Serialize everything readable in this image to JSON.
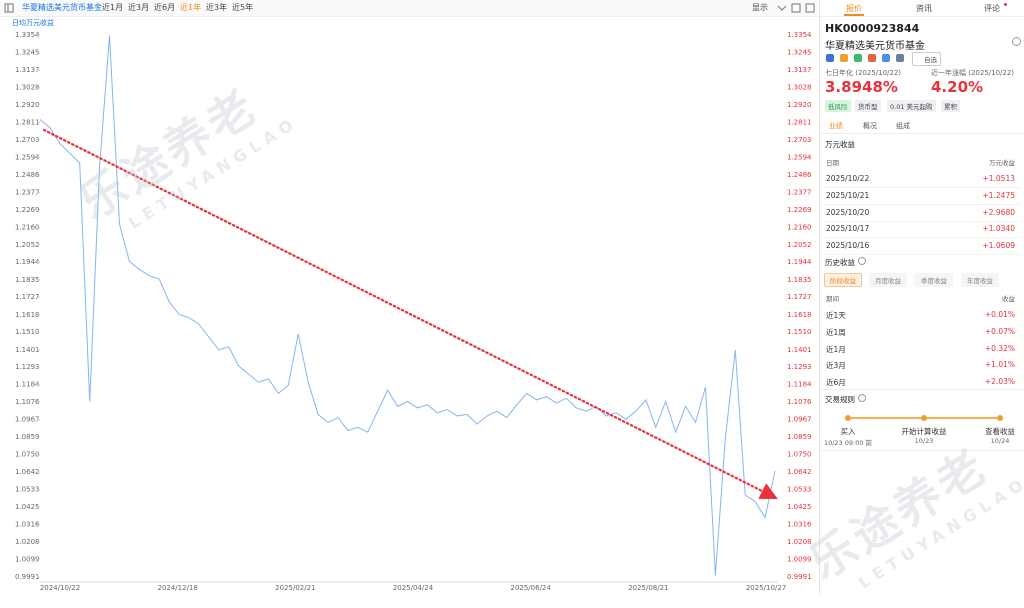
{
  "toolbar": {
    "fund": "华夏精选美元货币基金",
    "ranges": [
      "近1月",
      "近3月",
      "近6月",
      "近1年",
      "近3年",
      "近5年"
    ],
    "display": "显示"
  },
  "watermark": {
    "text": "乐途养老",
    "subtext": "LETUYANGLAO"
  },
  "chart_data": {
    "type": "line",
    "series": [
      {
        "name": "日均万元收益",
        "color": "#86b4ef",
        "values": [
          1.283,
          1.278,
          1.268,
          1.262,
          1.256,
          1.108,
          1.254,
          1.335,
          1.218,
          1.195,
          1.19,
          1.186,
          1.184,
          1.17,
          1.162,
          1.16,
          1.156,
          1.148,
          1.14,
          1.142,
          1.13,
          1.125,
          1.12,
          1.122,
          1.113,
          1.118,
          1.15,
          1.12,
          1.1,
          1.095,
          1.098,
          1.09,
          1.092,
          1.089,
          1.102,
          1.115,
          1.105,
          1.108,
          1.104,
          1.106,
          1.101,
          1.103,
          1.099,
          1.1,
          1.094,
          1.099,
          1.102,
          1.098,
          1.106,
          1.113,
          1.109,
          1.111,
          1.107,
          1.11,
          1.104,
          1.102,
          1.105,
          1.099,
          1.101,
          1.097,
          1.102,
          1.109,
          1.092,
          1.108,
          1.089,
          1.105,
          1.095,
          1.117,
          1.0,
          1.085,
          1.14,
          1.05,
          1.046,
          1.036,
          1.065
        ]
      }
    ],
    "xticks": [
      "2024/10/22",
      "2024/12/18",
      "2025/02/21",
      "2025/04/24",
      "2025/06/24",
      "2025/08/21",
      "2025/10/27"
    ],
    "ylim": [
      0.9991,
      1.3354
    ],
    "yticks": [
      1.3354,
      1.3245,
      1.3137,
      1.3028,
      {
        "value": 1.292,
        "label": "1.2920"
      },
      1.2811,
      1.2703,
      1.2594,
      1.2486,
      1.2377,
      1.2269,
      {
        "value": 1.216,
        "label": "1.2160"
      },
      1.2052,
      1.1944,
      1.1835,
      1.1727,
      1.1618,
      {
        "value": 1.151,
        "label": "1.1510"
      },
      1.1401,
      1.1293,
      1.1184,
      1.1076,
      1.0967,
      1.0859,
      {
        "value": 1.075,
        "label": "1.0750"
      },
      1.0642,
      1.0533,
      1.0425,
      1.0316,
      1.0208,
      1.0099,
      0.9991
    ],
    "grid": false
  },
  "panel": {
    "tabs": [
      "报价",
      "资讯",
      "评论"
    ],
    "code": "HK0000923844",
    "name": "华夏精选美元货币基金",
    "watch": "自选",
    "metrics": [
      {
        "label": "七日年化 (2025/10/22)",
        "value": "3.8948%"
      },
      {
        "label": "近一年涨幅 (2025/10/22)",
        "value": "4.20%"
      }
    ],
    "tags": [
      "低风险",
      "货币型",
      "0.01 美元起购",
      "累积"
    ],
    "subtabs": [
      "业绩",
      "概况",
      "组成"
    ],
    "income": {
      "title": "万元收益",
      "header": [
        "日期",
        "万元收益"
      ],
      "rows": [
        [
          "2025/10/22",
          "+1.0513"
        ],
        [
          "2025/10/21",
          "+1.2475"
        ],
        [
          "2025/10/20",
          "+2.9680"
        ],
        [
          "2025/10/17",
          "+1.0340"
        ],
        [
          "2025/10/16",
          "+1.0609"
        ]
      ]
    },
    "history": {
      "title": "历史收益",
      "buttons": [
        "阶段收益",
        "月度收益",
        "季度收益",
        "年度收益"
      ],
      "header": [
        "期间",
        "收益"
      ],
      "rows": [
        [
          "近1天",
          "+0.01%"
        ],
        [
          "近1周",
          "+0.07%"
        ],
        [
          "近1月",
          "+0.32%"
        ],
        [
          "近3月",
          "+1.01%"
        ],
        [
          "近6月",
          "+2.03%"
        ]
      ]
    },
    "rules": {
      "title": "交易规则",
      "steps": [
        {
          "label": "买入",
          "time": "10/23 09:00 前"
        },
        {
          "label": "开始计算收益",
          "time": "10/23"
        },
        {
          "label": "查看收益",
          "time": "10/24"
        }
      ]
    }
  }
}
